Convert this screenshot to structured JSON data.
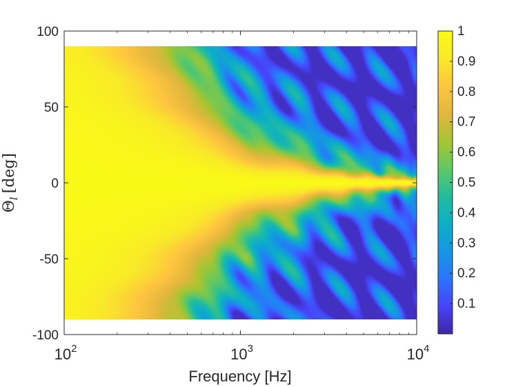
{
  "chart_data": {
    "type": "heatmap",
    "title": "",
    "xlabel": "Frequency [Hz]",
    "ylabel_main": "Θ",
    "ylabel_sub": "l",
    "ylabel_unit": "[deg]",
    "x_scale": "log",
    "xlim": [
      100,
      10000
    ],
    "ylim": [
      -100,
      100
    ],
    "data_y_range": [
      -90,
      90
    ],
    "x_ticks": [
      {
        "value": 100,
        "base": "10",
        "exp": "2"
      },
      {
        "value": 1000,
        "base": "10",
        "exp": "3"
      },
      {
        "value": 10000,
        "base": "10",
        "exp": "4"
      }
    ],
    "y_ticks": [
      {
        "value": 100,
        "label": "100"
      },
      {
        "value": 50,
        "label": "50"
      },
      {
        "value": 0,
        "label": "0"
      },
      {
        "value": -50,
        "label": "-50"
      },
      {
        "value": -100,
        "label": "-100"
      }
    ],
    "colormap": "parula",
    "clim": [
      0,
      1
    ],
    "colorbar_ticks": [
      {
        "value": 1,
        "label": "1"
      },
      {
        "value": 0.9,
        "label": "0.9"
      },
      {
        "value": 0.8,
        "label": "0.8"
      },
      {
        "value": 0.7,
        "label": "0.7"
      },
      {
        "value": 0.6,
        "label": "0.6"
      },
      {
        "value": 0.5,
        "label": "0.5"
      },
      {
        "value": 0.4,
        "label": "0.4"
      },
      {
        "value": 0.3,
        "label": "0.3"
      },
      {
        "value": 0.2,
        "label": "0.2"
      },
      {
        "value": 0.1,
        "label": "0.1"
      }
    ],
    "grid": false,
    "legend": "none",
    "colors": {
      "parula_stops": [
        "#3e26a8",
        "#4743f8",
        "#2b75fd",
        "#1597e3",
        "#0dafc6",
        "#22bd9e",
        "#60c863",
        "#a7c530",
        "#e3b73d",
        "#fec540",
        "#f9e929",
        "#f9fb15"
      ],
      "axis": "#262626"
    }
  }
}
